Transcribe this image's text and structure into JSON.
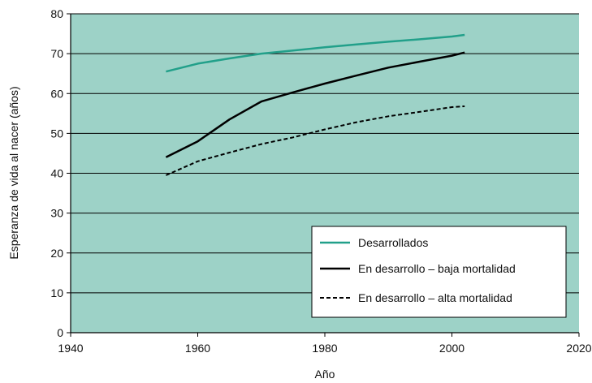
{
  "chart_data": {
    "type": "line",
    "xlabel": "Año",
    "ylabel": "Esperanza de vida al nacer (años)",
    "xlim": [
      1940,
      2020
    ],
    "ylim": [
      0,
      80
    ],
    "x_ticks": [
      1940,
      1960,
      1980,
      2000,
      2020
    ],
    "y_ticks": [
      0,
      10,
      20,
      30,
      40,
      50,
      60,
      70,
      80
    ],
    "grid": "horizontal",
    "legend_position": "bottom-right",
    "colors": {
      "background": "#9dd2c7",
      "grid": "#000000"
    },
    "series": [
      {
        "name": "Desarrollados",
        "color": "#22a08a",
        "dash": "solid",
        "x": [
          1955,
          1960,
          1965,
          1970,
          1975,
          1980,
          1985,
          1990,
          1995,
          2000,
          2002
        ],
        "values": [
          65.5,
          67.5,
          68.8,
          70.0,
          70.8,
          71.6,
          72.3,
          73.0,
          73.6,
          74.3,
          74.7
        ]
      },
      {
        "name": "En desarrollo – baja mortalidad",
        "color": "#000000",
        "dash": "solid",
        "x": [
          1955,
          1960,
          1965,
          1970,
          1975,
          1980,
          1985,
          1990,
          1995,
          2000,
          2002
        ],
        "values": [
          44.0,
          48.0,
          53.5,
          58.0,
          60.3,
          62.5,
          64.5,
          66.5,
          68.0,
          69.5,
          70.3
        ]
      },
      {
        "name": "En desarrollo – alta mortalidad",
        "color": "#000000",
        "dash": "dashed",
        "x": [
          1955,
          1960,
          1965,
          1970,
          1975,
          1980,
          1985,
          1990,
          1995,
          2000,
          2002
        ],
        "values": [
          39.5,
          43.0,
          45.2,
          47.3,
          49.0,
          51.0,
          52.8,
          54.3,
          55.4,
          56.6,
          56.8
        ]
      }
    ]
  }
}
